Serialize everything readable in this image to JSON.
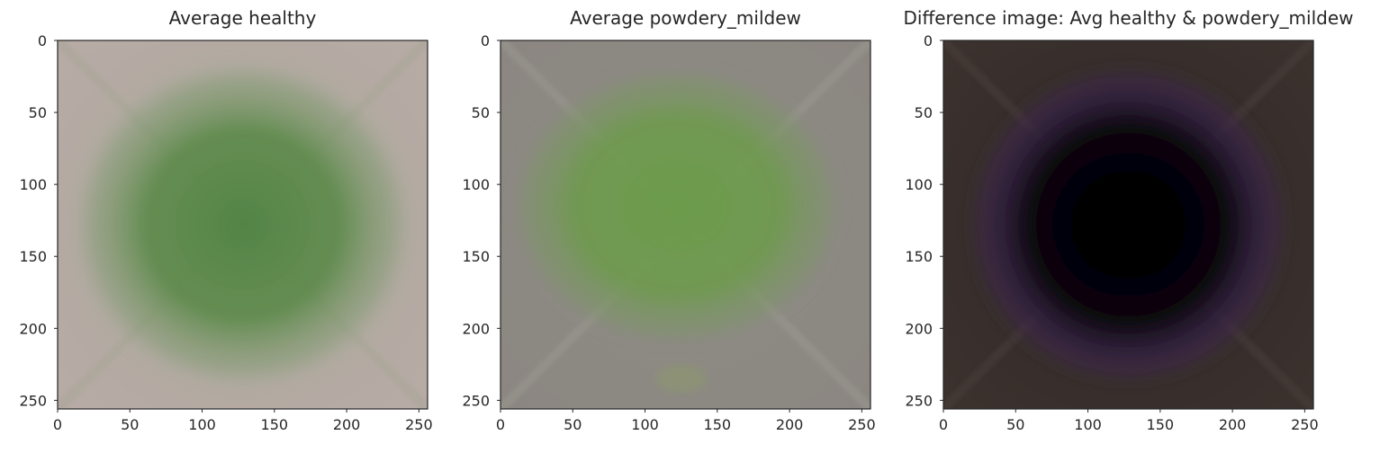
{
  "chart_data": [
    {
      "type": "image",
      "title": "Average healthy",
      "xlim": [
        0,
        256
      ],
      "ylim": [
        256,
        0
      ],
      "xticks": [
        0,
        50,
        100,
        150,
        200,
        250
      ],
      "yticks": [
        0,
        50,
        100,
        150,
        200,
        250
      ],
      "colors": {
        "background": "#b6aaa4",
        "leaf": "#5e8a4a",
        "leaf_core": "#4f8240"
      },
      "grid": false
    },
    {
      "type": "image",
      "title": "Average powdery_mildew",
      "xlim": [
        0,
        256
      ],
      "ylim": [
        256,
        0
      ],
      "xticks": [
        0,
        50,
        100,
        150,
        200,
        250
      ],
      "yticks": [
        0,
        50,
        100,
        150,
        200,
        250
      ],
      "colors": {
        "background": "#8e8884",
        "leaf": "#6e9a4e",
        "leaf_core": "#6a9c48"
      },
      "grid": false
    },
    {
      "type": "image",
      "title": "Difference image: Avg healthy & powdery_mildew",
      "xlim": [
        0,
        256
      ],
      "ylim": [
        256,
        0
      ],
      "xticks": [
        0,
        50,
        100,
        150,
        200,
        250
      ],
      "yticks": [
        0,
        50,
        100,
        150,
        200,
        250
      ],
      "colors": {
        "background": "#3a302c",
        "ring": "#3c2448",
        "core": "#050505"
      },
      "grid": false
    }
  ]
}
